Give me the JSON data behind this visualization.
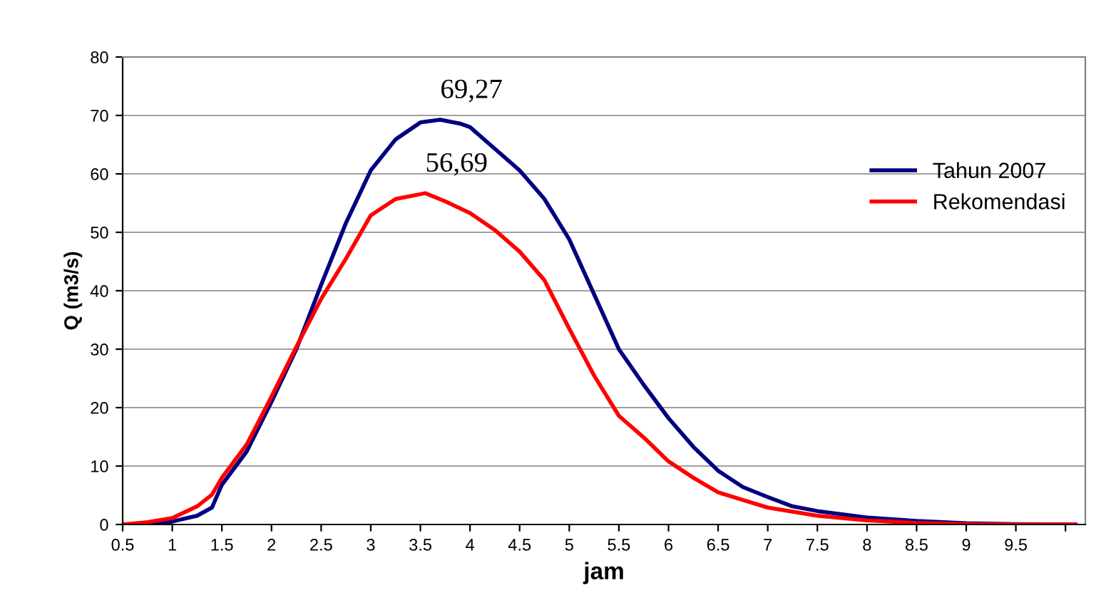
{
  "chart_data": {
    "type": "line",
    "xlabel": "jam",
    "ylabel": "Q (m3/s)",
    "xlim": [
      0.5,
      10.2
    ],
    "xticks": [
      0.5,
      1,
      1.5,
      2,
      2.5,
      3,
      3.5,
      4,
      4.5,
      5,
      5.5,
      6,
      6.5,
      7,
      7.5,
      8,
      8.5,
      9,
      9.5,
      {
        "value": 10,
        "label": null
      }
    ],
    "ylim": [
      0,
      80
    ],
    "yticks": [
      0,
      10,
      20,
      30,
      40,
      50,
      60,
      70,
      80
    ],
    "grid": "y",
    "legend": "right",
    "marker": "none",
    "line_style": "solid",
    "series": [
      {
        "name": "Tahun 2007",
        "color": "#000080",
        "x": [
          0.5,
          0.75,
          1.0,
          1.25,
          1.4,
          1.5,
          1.75,
          2.0,
          2.25,
          2.5,
          2.75,
          3.0,
          3.25,
          3.5,
          3.7,
          3.9,
          4.0,
          4.25,
          4.5,
          4.75,
          5.0,
          5.25,
          5.5,
          5.75,
          6.0,
          6.25,
          6.5,
          6.75,
          7.0,
          7.25,
          7.5,
          8.0,
          8.5,
          9.0,
          9.5,
          10.1
        ],
        "values": [
          0,
          0,
          0.5,
          1.5,
          2.9,
          6.8,
          12.5,
          21,
          30,
          41,
          51.6,
          60.6,
          65.9,
          68.8,
          69.27,
          68.6,
          68,
          64.3,
          60.6,
          55.7,
          48.8,
          39.4,
          30,
          23.9,
          18.2,
          13.3,
          9.2,
          6.4,
          4.7,
          3.1,
          2.3,
          1.2,
          0.6,
          0.2,
          0.05,
          0
        ]
      },
      {
        "name": "Rekomendasi",
        "color": "#ff0000",
        "x": [
          0.5,
          0.75,
          1.0,
          1.25,
          1.4,
          1.5,
          1.75,
          2.0,
          2.25,
          2.5,
          2.75,
          3.0,
          3.25,
          3.55,
          3.75,
          4.0,
          4.25,
          4.5,
          4.75,
          5.0,
          5.25,
          5.5,
          5.75,
          6.0,
          6.25,
          6.5,
          6.75,
          7.0,
          7.5,
          8.0,
          8.5,
          9.0,
          9.5,
          10.1
        ],
        "values": [
          0,
          0.4,
          1.1,
          3.1,
          5.1,
          8,
          13.7,
          21.9,
          30.4,
          38.6,
          45.5,
          52.9,
          55.7,
          56.69,
          55.3,
          53.3,
          50.4,
          46.7,
          41.8,
          33.5,
          25.5,
          18.6,
          14.9,
          10.8,
          8,
          5.5,
          4.2,
          2.9,
          1.5,
          0.7,
          0.25,
          0.05,
          0,
          0
        ]
      }
    ],
    "annotations": [
      {
        "text": "69,27",
        "x": 3.7,
        "y": 69.27
      },
      {
        "text": "56,69",
        "x": 3.55,
        "y": 56.69
      }
    ]
  }
}
